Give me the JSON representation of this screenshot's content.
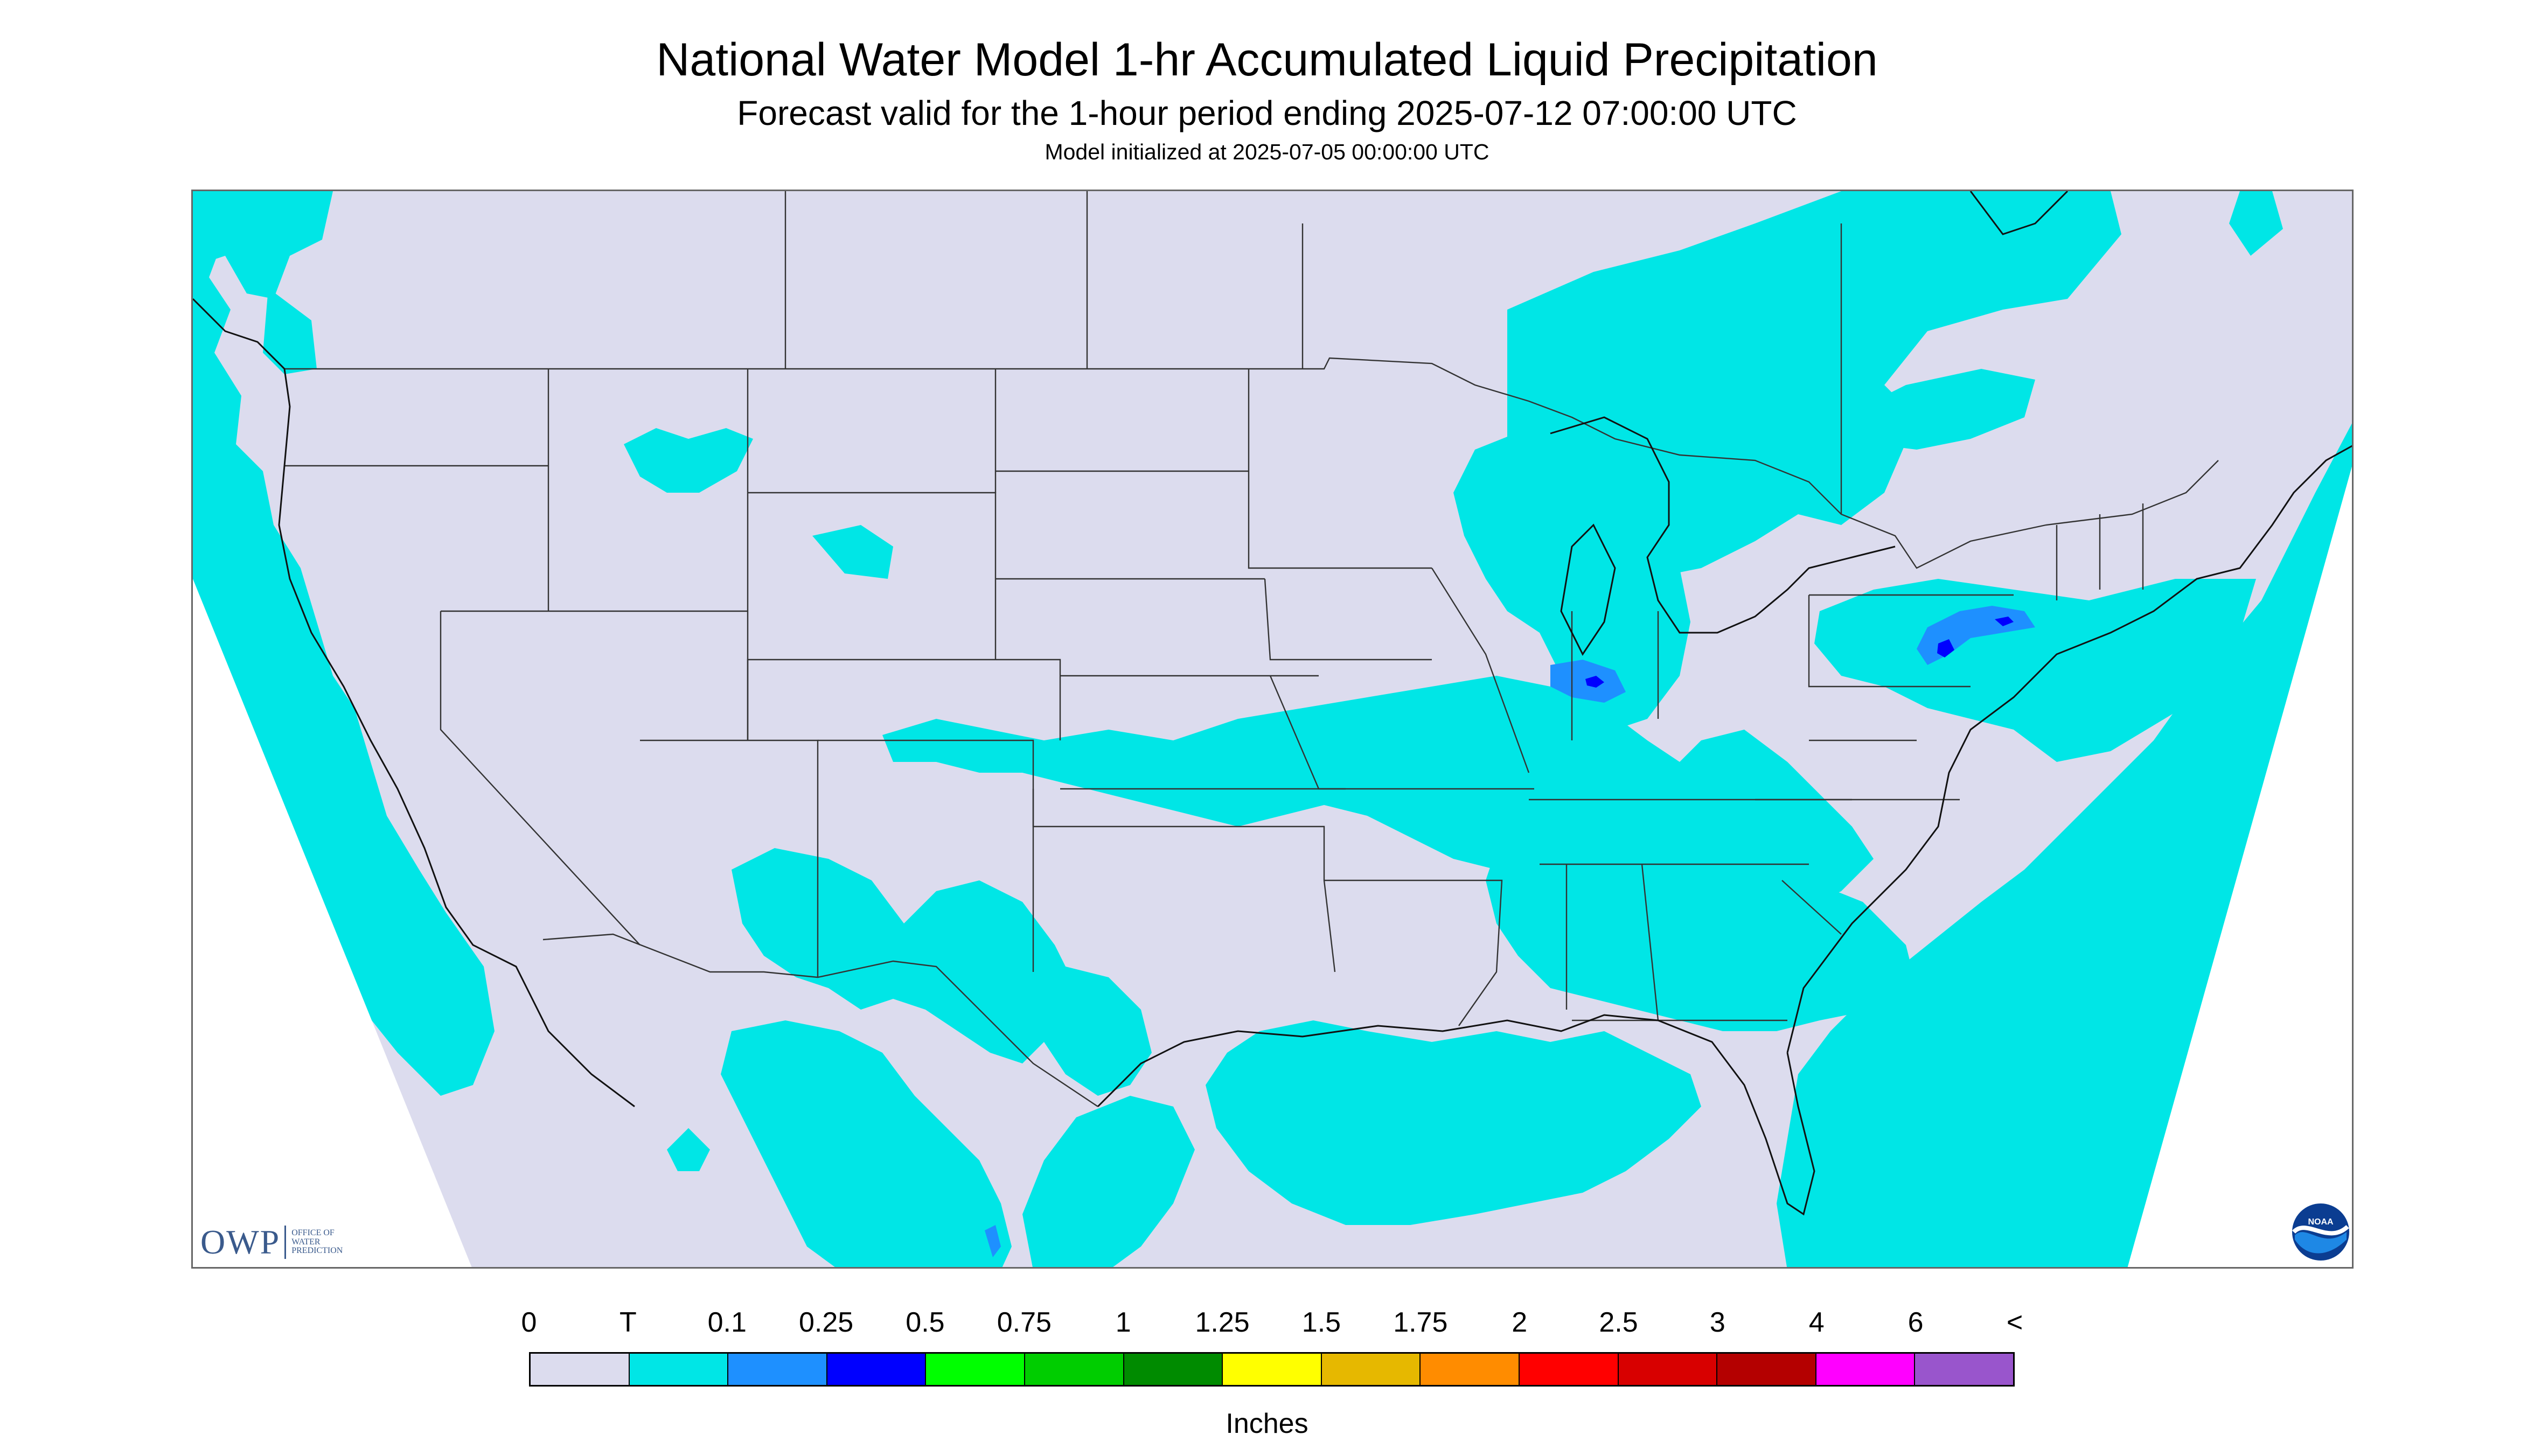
{
  "title": "National Water Model 1-hr Accumulated Liquid Precipitation",
  "subtitle": "Forecast valid for the 1-hour period ending 2025-07-12 07:00:00 UTC",
  "init_line": "Model initialized at 2025-07-05 00:00:00 UTC",
  "map": {
    "background_color": "#dcdcee",
    "outside_domain_color": "#ffffff",
    "precip_colors": {
      "trace": "#00e6e6",
      "light": "#1e90ff",
      "heavy": "#0000ff"
    }
  },
  "legend": {
    "tick_labels": [
      "0",
      "T",
      "0.1",
      "0.25",
      "0.5",
      "0.75",
      "1",
      "1.25",
      "1.5",
      "1.75",
      "2",
      "2.5",
      "3",
      "4",
      "6",
      "<"
    ],
    "colors": [
      "#dcdcee",
      "#00e6e6",
      "#1e90ff",
      "#0000ff",
      "#00ff00",
      "#00cd00",
      "#008b00",
      "#ffff00",
      "#e6b800",
      "#ff8c00",
      "#ff0000",
      "#d80000",
      "#b40000",
      "#ff00ff",
      "#9955cc"
    ],
    "units": "Inches"
  },
  "logos": {
    "owp_text": "OWP",
    "owp_subtext": [
      "OFFICE OF",
      "WATER",
      "PREDICTION"
    ],
    "noaa_text": "NOAA"
  }
}
